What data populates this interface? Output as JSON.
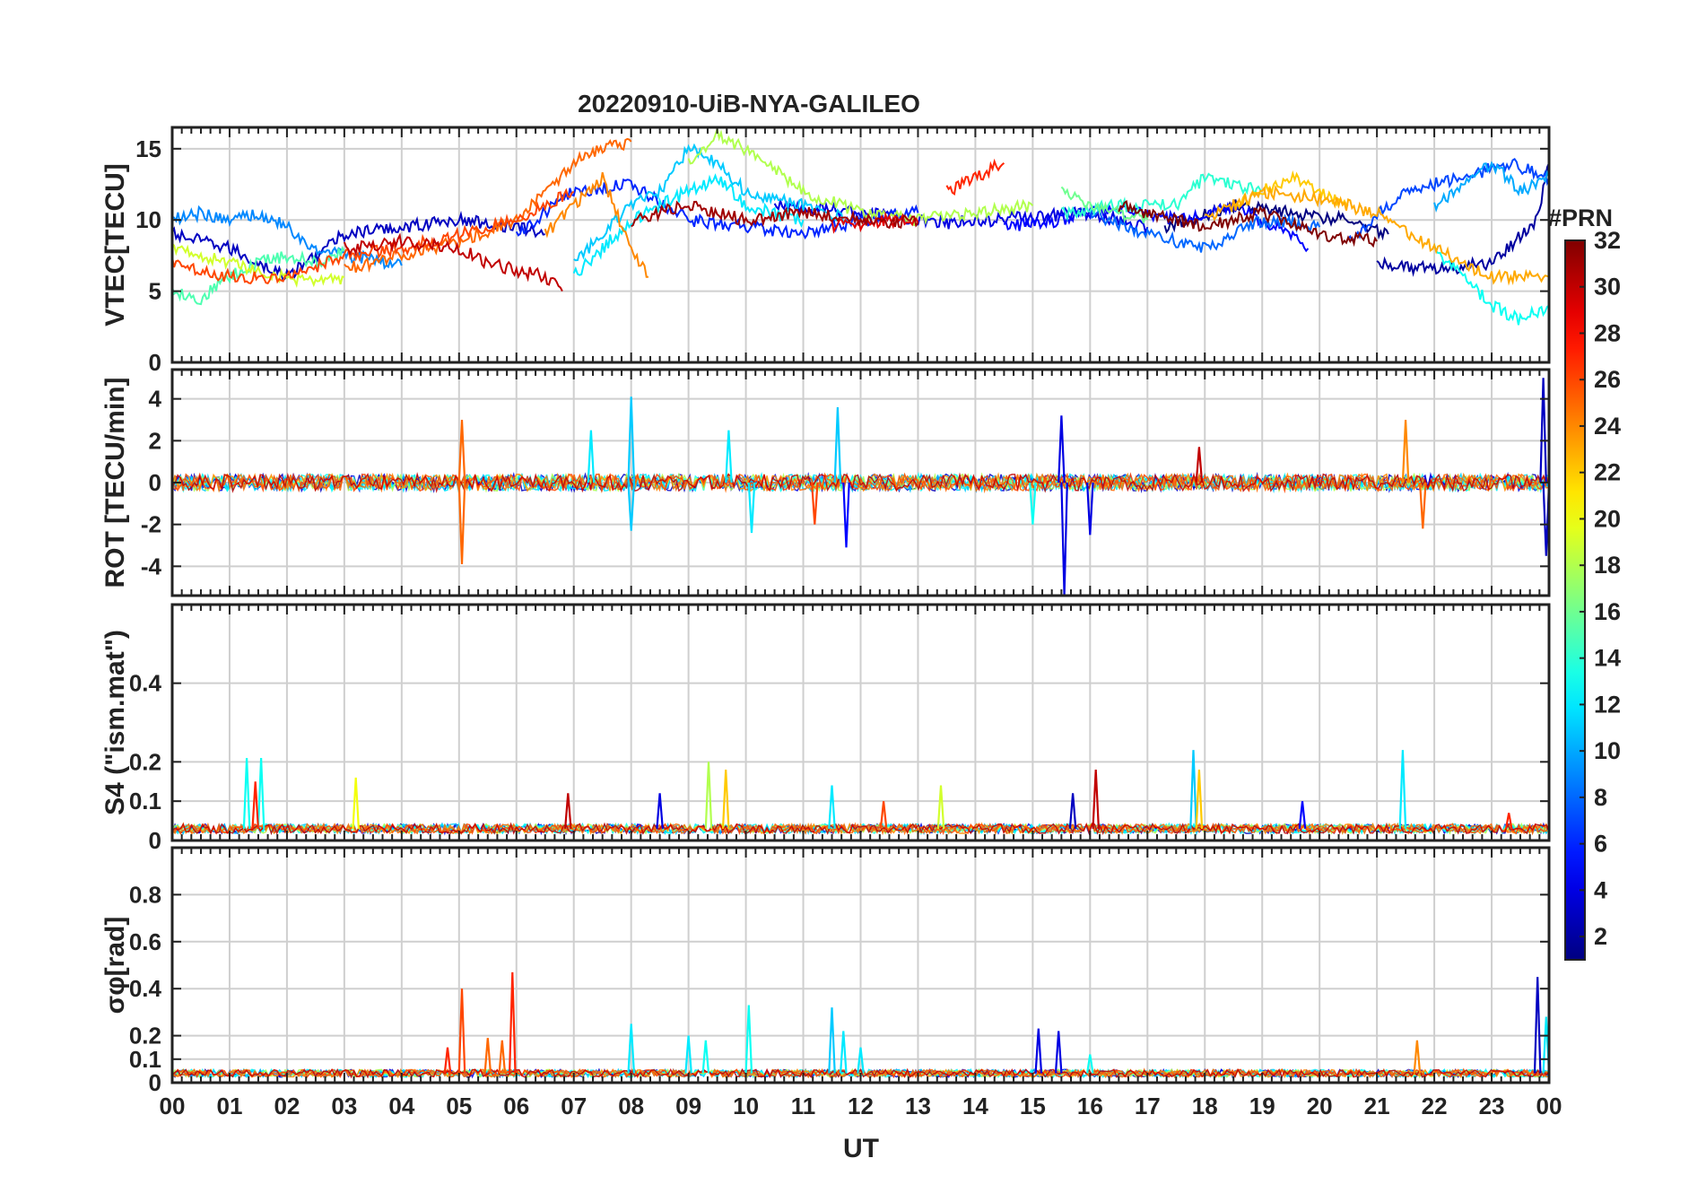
{
  "figure": {
    "title": "20220910-UiB-NYA-GALILEO",
    "xlabel": "UT",
    "x_ticks": [
      "00",
      "01",
      "02",
      "03",
      "04",
      "05",
      "06",
      "07",
      "08",
      "09",
      "10",
      "11",
      "12",
      "13",
      "14",
      "15",
      "16",
      "17",
      "18",
      "19",
      "20",
      "21",
      "22",
      "23",
      "00"
    ]
  },
  "colorbar": {
    "title": "#PRN",
    "range": [
      1,
      32
    ],
    "colormap": "jet",
    "ticks": [
      "2",
      "4",
      "6",
      "8",
      "10",
      "12",
      "14",
      "16",
      "18",
      "20",
      "22",
      "24",
      "26",
      "28",
      "30",
      "32"
    ]
  },
  "chart_data": [
    {
      "type": "line",
      "panel": "vtec",
      "ylabel": "VTEC[TECU]",
      "x_range_hours": [
        0,
        24
      ],
      "ylim": [
        0,
        16.5
      ],
      "y_ticks": [
        "0",
        "5",
        "10",
        "15"
      ],
      "y_tick_values": [
        0,
        5,
        10,
        15
      ],
      "grid": true,
      "series": [
        {
          "prn": 1,
          "x": [
            17.3,
            18.5,
            19.5,
            20.5,
            21.2
          ],
          "y": [
            9.5,
            11,
            10.5,
            10,
            9
          ]
        },
        {
          "prn": 2,
          "x": [
            21.0,
            22.0,
            23.0,
            23.8,
            24.0
          ],
          "y": [
            7,
            6.5,
            7,
            10,
            14
          ]
        },
        {
          "prn": 3,
          "x": [
            0.0,
            1.0,
            2.0,
            3.0,
            4.0,
            5.0,
            6.0,
            6.5
          ],
          "y": [
            9,
            8,
            6,
            9,
            9.5,
            10,
            9.5,
            9
          ]
        },
        {
          "prn": 4,
          "x": [
            10.5,
            12.0,
            13.5,
            15.0,
            16.0,
            17.0
          ],
          "y": [
            11,
            10.5,
            9.8,
            10.2,
            10.5,
            9.5
          ]
        },
        {
          "prn": 5,
          "x": [
            14.5,
            15.5,
            16.5,
            17.5,
            18.5,
            19.5,
            19.8
          ],
          "y": [
            9.5,
            10,
            11,
            10,
            11,
            9,
            8
          ]
        },
        {
          "prn": 6,
          "x": [
            6.0,
            7.0,
            8.0,
            9.0,
            10.0,
            11.0,
            12.0,
            13.0
          ],
          "y": [
            9,
            12,
            12.5,
            10,
            9.5,
            9,
            10,
            10.5
          ]
        },
        {
          "prn": 7,
          "x": [
            20.5,
            21.5,
            22.5,
            23.3,
            24.0
          ],
          "y": [
            8.5,
            12,
            13,
            14,
            13
          ]
        },
        {
          "prn": 8,
          "x": [
            16.0,
            17.0,
            18.0,
            19.0,
            20.0
          ],
          "y": [
            10.5,
            9,
            8,
            10,
            9.5
          ]
        },
        {
          "prn": 9,
          "x": [
            0.0,
            0.5,
            1.0,
            1.5,
            2.0,
            2.5,
            3.0,
            3.5,
            4.0
          ],
          "y": [
            10,
            10.5,
            10,
            10.5,
            9.5,
            8,
            7.5,
            7.2,
            6.8
          ]
        },
        {
          "prn": 10,
          "x": [
            22.0,
            22.5,
            23.0,
            23.5,
            24.0
          ],
          "y": [
            11,
            12.5,
            14,
            12,
            13
          ]
        },
        {
          "prn": 11,
          "x": [
            7.0,
            7.5,
            8.0,
            8.5,
            9.0,
            9.5,
            10.0,
            11.0,
            11.8
          ],
          "y": [
            7,
            9,
            11,
            12,
            15,
            14,
            12,
            11,
            10
          ]
        },
        {
          "prn": 12,
          "x": [
            7.0,
            7.5,
            8.0,
            8.5,
            9.0,
            9.5,
            10.0,
            10.5,
            11.0
          ],
          "y": [
            6,
            8,
            10,
            11,
            12,
            13,
            11,
            10.5,
            10
          ]
        },
        {
          "prn": 13,
          "x": [
            22.0,
            22.5,
            23.0,
            23.5,
            24.0
          ],
          "y": [
            8,
            6,
            4,
            3,
            4
          ]
        },
        {
          "prn": 14,
          "x": [
            15.5,
            16.5,
            17.5,
            18.0,
            19.0
          ],
          "y": [
            10.5,
            11,
            11,
            13,
            12
          ]
        },
        {
          "prn": 15,
          "x": [
            0.0,
            0.5,
            1.0,
            1.5,
            2.0,
            2.5,
            3.0
          ],
          "y": [
            5,
            4.5,
            6,
            7,
            7.5,
            7,
            7.8
          ]
        },
        {
          "prn": 16,
          "x": [
            15.5,
            16.0,
            16.5,
            17.0
          ],
          "y": [
            12,
            11,
            10.5,
            10
          ]
        },
        {
          "prn": 18,
          "x": [
            9.0,
            9.5,
            10.0,
            11.0,
            12.0,
            13.0,
            14.0,
            15.0
          ],
          "y": [
            14,
            16,
            15,
            12,
            10.5,
            10,
            10.5,
            11
          ]
        },
        {
          "prn": 19,
          "x": [
            0.0,
            0.5,
            1.0,
            1.5,
            2.0,
            2.5,
            3.0
          ],
          "y": [
            8,
            7.5,
            7,
            6.5,
            6,
            5.5,
            6
          ]
        },
        {
          "prn": 22,
          "x": [
            18.5,
            19.0,
            19.5,
            20.0,
            20.5
          ],
          "y": [
            11,
            12,
            13,
            12,
            11
          ]
        },
        {
          "prn": 23,
          "x": [
            18.0,
            19.0,
            20.0,
            21.0,
            22.0,
            23.0,
            24.0
          ],
          "y": [
            10,
            12,
            11.5,
            10.5,
            8,
            6,
            6
          ]
        },
        {
          "prn": 24,
          "x": [
            6.5,
            7.0,
            7.5,
            8.0,
            8.3
          ],
          "y": [
            9,
            11,
            13,
            8,
            6
          ]
        },
        {
          "prn": 25,
          "x": [
            3.0,
            4.0,
            5.0,
            6.0,
            7.0,
            7.5,
            8.0
          ],
          "y": [
            6.5,
            7.5,
            8.5,
            10,
            14,
            15,
            15.5
          ]
        },
        {
          "prn": 26,
          "x": [
            0.0,
            1.0,
            2.0,
            3.0,
            4.0,
            5.0,
            6.0,
            7.0
          ],
          "y": [
            7,
            6,
            6,
            7.5,
            8,
            9,
            10,
            12
          ]
        },
        {
          "prn": 27,
          "x": [
            13.5,
            14.0,
            14.5
          ],
          "y": [
            12,
            13,
            14
          ]
        },
        {
          "prn": 29,
          "x": [
            11.5,
            12.5,
            13.0
          ],
          "y": [
            9.5,
            10,
            9.8
          ]
        },
        {
          "prn": 30,
          "x": [
            3.0,
            4.0,
            5.0,
            5.5,
            6.0,
            6.5,
            6.8
          ],
          "y": [
            8,
            8.5,
            8,
            7,
            6.5,
            6,
            5
          ]
        },
        {
          "prn": 31,
          "x": [
            8.0,
            9.0,
            10.0,
            11.0,
            12.0,
            13.0
          ],
          "y": [
            10,
            11,
            10,
            10.5,
            10,
            9.8
          ]
        },
        {
          "prn": 32,
          "x": [
            16.5,
            17.5,
            18.0,
            19.0,
            20.0,
            21.0
          ],
          "y": [
            11,
            10,
            9.5,
            10.5,
            9,
            8.5
          ]
        }
      ]
    },
    {
      "type": "line",
      "panel": "rot",
      "ylabel": "ROT [TECU/min]",
      "x_range_hours": [
        0,
        24
      ],
      "ylim": [
        -5.4,
        5.4
      ],
      "y_ticks": [
        "-4",
        "-2",
        "0",
        "2",
        "4"
      ],
      "y_tick_values": [
        -4,
        -2,
        0,
        2,
        4
      ],
      "grid": true,
      "baseline_noise_amplitude": 0.4,
      "spikes": [
        {
          "x": 5.05,
          "y": 3.0,
          "prn": 25
        },
        {
          "x": 5.05,
          "y": -3.9,
          "prn": 25
        },
        {
          "x": 7.3,
          "y": 2.5,
          "prn": 12
        },
        {
          "x": 8.0,
          "y": 4.1,
          "prn": 11
        },
        {
          "x": 8.0,
          "y": -2.3,
          "prn": 11
        },
        {
          "x": 9.7,
          "y": 2.5,
          "prn": 12
        },
        {
          "x": 10.1,
          "y": -2.4,
          "prn": 12
        },
        {
          "x": 11.6,
          "y": 3.6,
          "prn": 11
        },
        {
          "x": 11.75,
          "y": -3.1,
          "prn": 5
        },
        {
          "x": 11.2,
          "y": -2.0,
          "prn": 26
        },
        {
          "x": 15.5,
          "y": 3.2,
          "prn": 4
        },
        {
          "x": 15.55,
          "y": -5.4,
          "prn": 4
        },
        {
          "x": 15.0,
          "y": -2.0,
          "prn": 13
        },
        {
          "x": 16.0,
          "y": -2.5,
          "prn": 4
        },
        {
          "x": 17.9,
          "y": 1.7,
          "prn": 30
        },
        {
          "x": 21.5,
          "y": 3.0,
          "prn": 24
        },
        {
          "x": 21.8,
          "y": -2.2,
          "prn": 25
        },
        {
          "x": 23.9,
          "y": 5.0,
          "prn": 3
        },
        {
          "x": 23.95,
          "y": -3.5,
          "prn": 3
        }
      ]
    },
    {
      "type": "line",
      "panel": "s4",
      "ylabel": "S4 (\"ism.mat\")",
      "x_range_hours": [
        0,
        24
      ],
      "ylim": [
        0,
        0.6
      ],
      "y_ticks": [
        "0",
        "0.1",
        "0.2",
        "0.4"
      ],
      "y_tick_values": [
        0,
        0.1,
        0.2,
        0.4
      ],
      "grid": true,
      "baseline": 0.03,
      "spikes": [
        {
          "x": 1.3,
          "y": 0.21,
          "prn": 13
        },
        {
          "x": 1.55,
          "y": 0.21,
          "prn": 13
        },
        {
          "x": 1.45,
          "y": 0.15,
          "prn": 27
        },
        {
          "x": 3.2,
          "y": 0.16,
          "prn": 20
        },
        {
          "x": 6.9,
          "y": 0.12,
          "prn": 30
        },
        {
          "x": 8.5,
          "y": 0.12,
          "prn": 4
        },
        {
          "x": 9.35,
          "y": 0.2,
          "prn": 18
        },
        {
          "x": 9.65,
          "y": 0.18,
          "prn": 22
        },
        {
          "x": 11.5,
          "y": 0.14,
          "prn": 12
        },
        {
          "x": 12.4,
          "y": 0.1,
          "prn": 26
        },
        {
          "x": 13.4,
          "y": 0.14,
          "prn": 19
        },
        {
          "x": 16.1,
          "y": 0.18,
          "prn": 30
        },
        {
          "x": 15.7,
          "y": 0.12,
          "prn": 3
        },
        {
          "x": 17.8,
          "y": 0.23,
          "prn": 11
        },
        {
          "x": 17.9,
          "y": 0.18,
          "prn": 22
        },
        {
          "x": 19.7,
          "y": 0.1,
          "prn": 5
        },
        {
          "x": 21.45,
          "y": 0.23,
          "prn": 12
        },
        {
          "x": 23.3,
          "y": 0.07,
          "prn": 27
        }
      ]
    },
    {
      "type": "line",
      "panel": "sigma_phi",
      "ylabel": "σφ[rad]",
      "x_range_hours": [
        0,
        24
      ],
      "ylim": [
        0,
        1.0
      ],
      "y_ticks": [
        "0",
        "0.1",
        "0.2",
        "0.4",
        "0.6",
        "0.8"
      ],
      "y_tick_values": [
        0,
        0.1,
        0.2,
        0.4,
        0.6,
        0.8
      ],
      "grid": true,
      "baseline": 0.04,
      "spikes": [
        {
          "x": 5.05,
          "y": 0.4,
          "prn": 26
        },
        {
          "x": 5.5,
          "y": 0.19,
          "prn": 25
        },
        {
          "x": 5.75,
          "y": 0.18,
          "prn": 25
        },
        {
          "x": 5.93,
          "y": 0.47,
          "prn": 27
        },
        {
          "x": 4.8,
          "y": 0.15,
          "prn": 27
        },
        {
          "x": 8.0,
          "y": 0.25,
          "prn": 12
        },
        {
          "x": 9.0,
          "y": 0.2,
          "prn": 12
        },
        {
          "x": 9.3,
          "y": 0.18,
          "prn": 13
        },
        {
          "x": 10.05,
          "y": 0.33,
          "prn": 13
        },
        {
          "x": 11.5,
          "y": 0.32,
          "prn": 11
        },
        {
          "x": 11.7,
          "y": 0.22,
          "prn": 12
        },
        {
          "x": 12.0,
          "y": 0.15,
          "prn": 12
        },
        {
          "x": 15.1,
          "y": 0.23,
          "prn": 4
        },
        {
          "x": 15.45,
          "y": 0.22,
          "prn": 4
        },
        {
          "x": 16.0,
          "y": 0.12,
          "prn": 13
        },
        {
          "x": 21.7,
          "y": 0.18,
          "prn": 24
        },
        {
          "x": 23.8,
          "y": 0.45,
          "prn": 3
        },
        {
          "x": 23.95,
          "y": 0.28,
          "prn": 12
        }
      ]
    }
  ]
}
